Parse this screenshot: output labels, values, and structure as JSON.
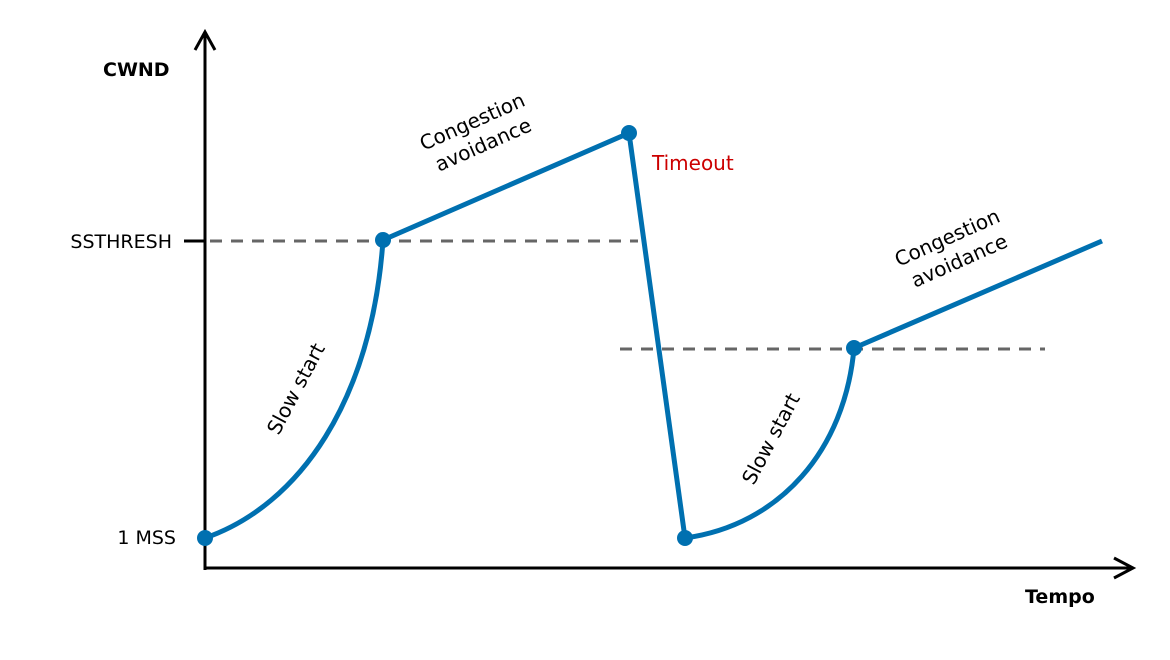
{
  "labels": {
    "y_axis": "CWND",
    "x_axis": "Tempo",
    "ssthresh": "SSTHRESH",
    "one_mss": "1 MSS",
    "timeout": "Timeout",
    "slow_start_1": "Slow start",
    "congestion_avoidance_1_line1": "Congestion",
    "congestion_avoidance_1_line2": "avoidance",
    "slow_start_2": "Slow start",
    "congestion_avoidance_2_line1": "Congestion",
    "congestion_avoidance_2_line2": "avoidance"
  },
  "colors": {
    "curve": "#0070b0",
    "timeout": "#cc0000",
    "threshold_dash": "#666666"
  }
}
